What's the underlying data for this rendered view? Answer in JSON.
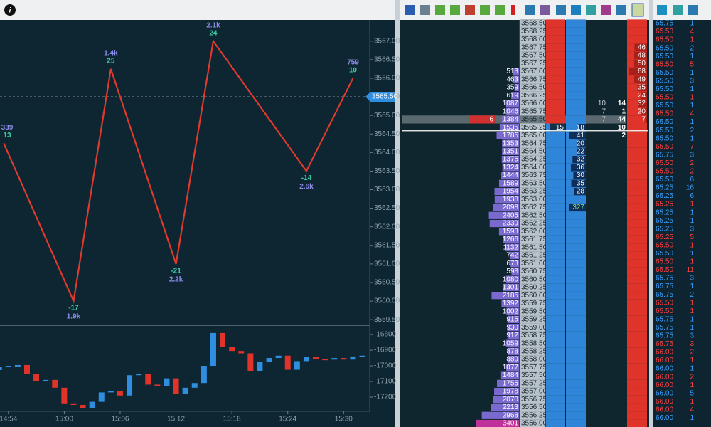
{
  "chart": {
    "ylim": [
      3559.35,
      3567.57
    ],
    "yticks": [
      {
        "value": 3567,
        "label": "3567.00"
      },
      {
        "value": 3566.5,
        "label": "3566.50"
      },
      {
        "value": 3566,
        "label": "3566.00"
      },
      {
        "value": 3565.5,
        "label": "3565.50"
      },
      {
        "value": 3565,
        "label": "3565.00"
      },
      {
        "value": 3564.5,
        "label": "3564.50"
      },
      {
        "value": 3564,
        "label": "3564.00"
      },
      {
        "value": 3563.5,
        "label": "3563.50"
      },
      {
        "value": 3563,
        "label": "3563.00"
      },
      {
        "value": 3562.5,
        "label": "3562.50"
      },
      {
        "value": 3562,
        "label": "3562.00"
      },
      {
        "value": 3561.5,
        "label": "3561.50"
      },
      {
        "value": 3561,
        "label": "3561.00"
      },
      {
        "value": 3560.5,
        "label": "3560.50"
      },
      {
        "value": 3560,
        "label": "3560.00"
      },
      {
        "value": 3559.5,
        "label": "3559.50"
      }
    ],
    "xlim": [
      893.1,
      932.8
    ],
    "xticks": [
      {
        "value": 894,
        "label": "14:54"
      },
      {
        "value": 900,
        "label": "15:00"
      },
      {
        "value": 906,
        "label": "15:06"
      },
      {
        "value": 912,
        "label": "15:12"
      },
      {
        "value": 918,
        "label": "15:18"
      },
      {
        "value": 924,
        "label": "15:24"
      },
      {
        "value": 930,
        "label": "15:30"
      }
    ],
    "last_price": {
      "value": 3565.5,
      "label": "3565.50"
    },
    "line_color": "#e03a2e",
    "zigzag": {
      "x": [
        893.5,
        901,
        905,
        912,
        916,
        926,
        931
      ],
      "y": [
        3564.25,
        3560,
        3566.25,
        3561,
        3567,
        3563.5,
        3566
      ],
      "volume": [
        "339",
        "1.9k",
        "1.4k",
        "2.2k",
        "2.1k",
        "2.6k",
        "759"
      ],
      "delta": [
        13,
        -17,
        25,
        -21,
        24,
        -14,
        10
      ]
    },
    "delta_panel": {
      "ylim": [
        -17291,
        -16745
      ],
      "yticks": [
        -16800,
        -16900,
        -17000,
        -17100,
        -17200
      ],
      "x": [
        893,
        894,
        895,
        896,
        897,
        898,
        899,
        900,
        901,
        902,
        903,
        904,
        905,
        906,
        907,
        908,
        909,
        910,
        911,
        912,
        913,
        914,
        915,
        916,
        917,
        918,
        919,
        920,
        921,
        922,
        923,
        924,
        925,
        926,
        927,
        928,
        929,
        930,
        931,
        932
      ],
      "candles": [
        [
          -17027,
          -17005
        ],
        [
          -17005,
          -17000
        ],
        [
          -17000,
          -16995
        ],
        [
          -16995,
          -17050
        ],
        [
          -17050,
          -17100
        ],
        [
          -17100,
          -17090
        ],
        [
          -17090,
          -17140
        ],
        [
          -17140,
          -17240
        ],
        [
          -17240,
          -17250
        ],
        [
          -17250,
          -17270
        ],
        [
          -17270,
          -17230
        ],
        [
          -17230,
          -17170
        ],
        [
          -17170,
          -17160
        ],
        [
          -17160,
          -17190
        ],
        [
          -17190,
          -17060
        ],
        [
          -17060,
          -17050
        ],
        [
          -17050,
          -17120
        ],
        [
          -17120,
          -17130
        ],
        [
          -17130,
          -17080
        ],
        [
          -17080,
          -17180
        ],
        [
          -17180,
          -17140
        ],
        [
          -17140,
          -17110
        ],
        [
          -17110,
          -17000
        ],
        [
          -17000,
          -16790
        ],
        [
          -16790,
          -16880
        ],
        [
          -16880,
          -16905
        ],
        [
          -16905,
          -16920
        ],
        [
          -16920,
          -17035
        ],
        [
          -17035,
          -16975
        ],
        [
          -16975,
          -16950
        ],
        [
          -16950,
          -16935
        ],
        [
          -16935,
          -17025
        ],
        [
          -17025,
          -16970
        ],
        [
          -16970,
          -16945
        ],
        [
          -16945,
          -16955
        ],
        [
          -16955,
          -16960
        ],
        [
          -16960,
          -16950
        ],
        [
          -16950,
          -16960
        ],
        [
          -16960,
          -16940
        ],
        [
          -16940,
          -16935
        ]
      ]
    }
  },
  "dom": {
    "last_size": 6,
    "rows": [
      [
        "3568.50",
        null,
        null,
        null,
        null,
        null,
        null
      ],
      [
        "3568.25",
        null,
        null,
        null,
        null,
        null,
        null
      ],
      [
        "3568.00",
        null,
        null,
        null,
        null,
        null,
        null
      ],
      [
        "3567.75",
        null,
        null,
        null,
        null,
        null,
        46
      ],
      [
        "3567.50",
        null,
        null,
        null,
        null,
        null,
        48
      ],
      [
        "3567.25",
        null,
        null,
        null,
        null,
        null,
        50
      ],
      [
        "3567.00",
        513,
        null,
        null,
        null,
        null,
        68
      ],
      [
        "3566.75",
        463,
        null,
        null,
        null,
        null,
        49
      ],
      [
        "3566.50",
        359,
        null,
        null,
        null,
        null,
        35
      ],
      [
        "3566.25",
        619,
        null,
        null,
        null,
        null,
        24
      ],
      [
        "3566.00",
        1087,
        null,
        null,
        10,
        14,
        32
      ],
      [
        "3565.75",
        1046,
        null,
        null,
        7,
        1,
        20
      ],
      [
        "3565.50",
        1384,
        null,
        null,
        7,
        44,
        7
      ],
      [
        "3565.25",
        1535,
        15,
        18,
        null,
        10,
        null
      ],
      [
        "3565.00",
        1785,
        null,
        41,
        null,
        2,
        null
      ],
      [
        "3564.75",
        1353,
        null,
        20,
        null,
        null,
        null
      ],
      [
        "3564.50",
        1351,
        null,
        22,
        null,
        null,
        null
      ],
      [
        "3564.25",
        1375,
        null,
        32,
        null,
        null,
        null
      ],
      [
        "3564.00",
        1324,
        null,
        36,
        null,
        null,
        null
      ],
      [
        "3563.75",
        1444,
        null,
        30,
        null,
        null,
        null
      ],
      [
        "3563.50",
        1589,
        null,
        35,
        null,
        null,
        null
      ],
      [
        "3563.25",
        1954,
        null,
        28,
        null,
        null,
        null
      ],
      [
        "3563.00",
        1938,
        null,
        null,
        null,
        null,
        null
      ],
      [
        "3562.75",
        2098,
        null,
        327,
        null,
        null,
        null
      ],
      [
        "3562.50",
        2405,
        null,
        null,
        null,
        null,
        null
      ],
      [
        "3562.25",
        2339,
        null,
        null,
        null,
        null,
        null
      ],
      [
        "3562.00",
        1593,
        null,
        null,
        null,
        null,
        null
      ],
      [
        "3561.75",
        1266,
        null,
        null,
        null,
        null,
        null
      ],
      [
        "3561.50",
        1132,
        null,
        null,
        null,
        null,
        null
      ],
      [
        "3561.25",
        742,
        null,
        null,
        null,
        null,
        null
      ],
      [
        "3561.00",
        673,
        null,
        null,
        null,
        null,
        null
      ],
      [
        "3560.75",
        598,
        null,
        null,
        null,
        null,
        null
      ],
      [
        "3560.50",
        1080,
        null,
        null,
        null,
        null,
        null
      ],
      [
        "3560.25",
        1301,
        null,
        null,
        null,
        null,
        null
      ],
      [
        "3560.00",
        2185,
        null,
        null,
        null,
        null,
        null
      ],
      [
        "3559.75",
        1392,
        null,
        null,
        null,
        null,
        null
      ],
      [
        "3559.50",
        1002,
        null,
        null,
        null,
        null,
        null
      ],
      [
        "3559.25",
        915,
        null,
        null,
        null,
        null,
        null
      ],
      [
        "3559.00",
        930,
        null,
        null,
        null,
        null,
        null
      ],
      [
        "3558.75",
        912,
        null,
        null,
        null,
        null,
        null
      ],
      [
        "3558.50",
        1059,
        null,
        null,
        null,
        null,
        null
      ],
      [
        "3558.25",
        878,
        null,
        null,
        null,
        null,
        null
      ],
      [
        "3558.00",
        889,
        null,
        null,
        null,
        null,
        null
      ],
      [
        "3557.75",
        1077,
        null,
        null,
        null,
        null,
        null
      ],
      [
        "3557.50",
        1484,
        null,
        null,
        null,
        null,
        null
      ],
      [
        "3557.25",
        1755,
        null,
        null,
        null,
        null,
        null
      ],
      [
        "3557.00",
        1978,
        null,
        null,
        null,
        null,
        null
      ],
      [
        "3556.75",
        2070,
        null,
        null,
        null,
        null,
        null
      ],
      [
        "3556.50",
        2213,
        null,
        null,
        null,
        null,
        null
      ],
      [
        "3556.25",
        2968,
        null,
        null,
        null,
        null,
        null
      ],
      [
        "3556.00",
        3401,
        null,
        null,
        null,
        null,
        null
      ]
    ]
  },
  "trades": [
    [
      "65.75",
      1,
      "#3aa0ff"
    ],
    [
      "65.50",
      4,
      "#ff4040"
    ],
    [
      "65.50",
      1,
      "#ff4040"
    ],
    [
      "65.50",
      2,
      "#3aa0ff"
    ],
    [
      "65.50",
      1,
      "#3aa0ff"
    ],
    [
      "65.50",
      5,
      "#ff4040"
    ],
    [
      "65.50",
      1,
      "#3aa0ff"
    ],
    [
      "65.50",
      3,
      "#3aa0ff"
    ],
    [
      "65.50",
      1,
      "#3aa0ff"
    ],
    [
      "65.50",
      1,
      "#ff4040"
    ],
    [
      "65.50",
      1,
      "#3aa0ff"
    ],
    [
      "65.50",
      4,
      "#ff4040"
    ],
    [
      "65.50",
      1,
      "#3aa0ff"
    ],
    [
      "65.50",
      2,
      "#3aa0ff"
    ],
    [
      "65.50",
      1,
      "#3aa0ff"
    ],
    [
      "65.50",
      7,
      "#ff4040"
    ],
    [
      "65.75",
      3,
      "#3aa0ff"
    ],
    [
      "65.50",
      2,
      "#ff4040"
    ],
    [
      "65.50",
      2,
      "#ff4040"
    ],
    [
      "65.50",
      6,
      "#3aa0ff"
    ],
    [
      "65.25",
      16,
      "#3aa0ff"
    ],
    [
      "65.25",
      6,
      "#3aa0ff"
    ],
    [
      "65.25",
      1,
      "#ff4040"
    ],
    [
      "65.25",
      1,
      "#3aa0ff"
    ],
    [
      "65.25",
      1,
      "#3aa0ff"
    ],
    [
      "65.25",
      3,
      "#3aa0ff"
    ],
    [
      "65.25",
      5,
      "#ff4040"
    ],
    [
      "65.50",
      1,
      "#ff4040"
    ],
    [
      "65.50",
      1,
      "#3aa0ff"
    ],
    [
      "65.50",
      1,
      "#ff4040"
    ],
    [
      "65.50",
      11,
      "#ff4040"
    ],
    [
      "65.75",
      3,
      "#3aa0ff"
    ],
    [
      "65.75",
      1,
      "#3aa0ff"
    ],
    [
      "65.75",
      2,
      "#3aa0ff"
    ],
    [
      "65.50",
      1,
      "#ff4040"
    ],
    [
      "65.50",
      1,
      "#ff4040"
    ],
    [
      "65.75",
      1,
      "#3aa0ff"
    ],
    [
      "65.75",
      1,
      "#3aa0ff"
    ],
    [
      "65.75",
      3,
      "#3aa0ff"
    ],
    [
      "65.75",
      3,
      "#ff4040"
    ],
    [
      "66.00",
      2,
      "#ff4040"
    ],
    [
      "66.00",
      1,
      "#ff4040"
    ],
    [
      "66.00",
      1,
      "#3aa0ff"
    ],
    [
      "66.00",
      2,
      "#ff4040"
    ],
    [
      "66.00",
      1,
      "#ff4040"
    ],
    [
      "66.00",
      5,
      "#3aa0ff"
    ],
    [
      "66.00",
      1,
      "#ff4040"
    ],
    [
      "66.00",
      4,
      "#ff4040"
    ],
    [
      "66.00",
      1,
      "#3aa0ff"
    ]
  ]
}
